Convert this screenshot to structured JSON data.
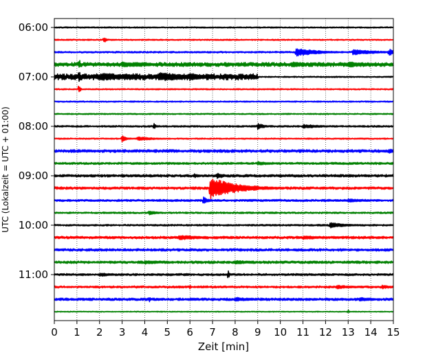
{
  "chart_data": {
    "type": "line",
    "title": "",
    "xlabel": "Zeit  [min]",
    "ylabel": "UTC (Lokalzeit = UTC + 01:00)",
    "xlim": [
      0,
      15
    ],
    "x_ticks": [
      0,
      1,
      2,
      3,
      4,
      5,
      6,
      7,
      8,
      9,
      10,
      11,
      12,
      13,
      14,
      15
    ],
    "y_tick_labels": [
      "06:00",
      "07:00",
      "08:00",
      "09:00",
      "10:00",
      "11:00"
    ],
    "grid": "vertical dotted",
    "legend": "none",
    "trace_colors": [
      "#000000",
      "#ff0000",
      "#0000ff",
      "#008000"
    ],
    "trace_interval_minutes": 15,
    "traces": [
      {
        "start": "06:00",
        "color": "#000000",
        "noise": 0.6,
        "events": []
      },
      {
        "start": "06:15",
        "color": "#ff0000",
        "noise": 0.6,
        "events": [
          {
            "t": 2.2,
            "amp": 5,
            "dur": 0.1
          }
        ]
      },
      {
        "start": "06:30",
        "color": "#0000ff",
        "noise": 0.8,
        "events": [
          {
            "t": 10.7,
            "amp": 6,
            "dur": 1.0
          },
          {
            "t": 13.2,
            "amp": 4,
            "dur": 1.2
          },
          {
            "t": 14.8,
            "amp": 5,
            "dur": 0.4
          }
        ]
      },
      {
        "start": "06:45",
        "color": "#008000",
        "noise": 2.0,
        "events": [
          {
            "t": 1.1,
            "amp": 10,
            "dur": 0.05
          },
          {
            "t": 3.0,
            "amp": 4,
            "dur": 1.5
          },
          {
            "t": 10.5,
            "amp": 4,
            "dur": 1.0
          },
          {
            "t": 13.0,
            "amp": 4,
            "dur": 1.5
          }
        ]
      },
      {
        "start": "07:00",
        "color": "#000000",
        "noise": 3.0,
        "events": [
          {
            "t": 1.1,
            "amp": 14,
            "dur": 0.05
          },
          {
            "t": 2.0,
            "amp": 6,
            "dur": 2.0
          },
          {
            "t": 4.6,
            "amp": 7,
            "dur": 1.5
          },
          {
            "t": 6.0,
            "amp": 6,
            "dur": 0.8
          }
        ],
        "noise_until": 9.0
      },
      {
        "start": "07:15",
        "color": "#ff0000",
        "noise": 0.6,
        "events": [
          {
            "t": 1.1,
            "amp": 8,
            "dur": 0.05
          }
        ]
      },
      {
        "start": "07:30",
        "color": "#0000ff",
        "noise": 0.6,
        "events": []
      },
      {
        "start": "07:45",
        "color": "#008000",
        "noise": 0.6,
        "events": []
      },
      {
        "start": "08:00",
        "color": "#000000",
        "noise": 0.8,
        "events": [
          {
            "t": 4.4,
            "amp": 5,
            "dur": 0.1
          },
          {
            "t": 9.0,
            "amp": 5,
            "dur": 0.3
          },
          {
            "t": 11.0,
            "amp": 3,
            "dur": 1.0
          }
        ]
      },
      {
        "start": "08:15",
        "color": "#ff0000",
        "noise": 0.6,
        "events": [
          {
            "t": 3.0,
            "amp": 5,
            "dur": 0.2
          },
          {
            "t": 3.7,
            "amp": 3,
            "dur": 0.8
          }
        ]
      },
      {
        "start": "08:30",
        "color": "#0000ff",
        "noise": 1.4,
        "events": [
          {
            "t": 14.8,
            "amp": 4,
            "dur": 0.3
          }
        ]
      },
      {
        "start": "08:45",
        "color": "#008000",
        "noise": 1.0,
        "events": [
          {
            "t": 9.0,
            "amp": 3,
            "dur": 0.6
          }
        ]
      },
      {
        "start": "09:00",
        "color": "#000000",
        "noise": 1.2,
        "events": [
          {
            "t": 6.2,
            "amp": 3,
            "dur": 0.3
          },
          {
            "t": 7.2,
            "amp": 5,
            "dur": 0.3
          }
        ]
      },
      {
        "start": "09:15",
        "color": "#ff0000",
        "noise": 1.2,
        "events": [
          {
            "t": 6.9,
            "amp": 16,
            "dur": 1.2
          }
        ]
      },
      {
        "start": "09:30",
        "color": "#0000ff",
        "noise": 1.0,
        "events": [
          {
            "t": 6.6,
            "amp": 6,
            "dur": 0.2
          },
          {
            "t": 13.0,
            "amp": 3,
            "dur": 0.8
          }
        ]
      },
      {
        "start": "09:45",
        "color": "#008000",
        "noise": 0.8,
        "events": [
          {
            "t": 4.2,
            "amp": 4,
            "dur": 0.3
          }
        ]
      },
      {
        "start": "10:00",
        "color": "#000000",
        "noise": 0.8,
        "events": [
          {
            "t": 12.2,
            "amp": 4,
            "dur": 0.8
          }
        ]
      },
      {
        "start": "10:15",
        "color": "#ff0000",
        "noise": 1.2,
        "events": [
          {
            "t": 5.5,
            "amp": 4,
            "dur": 1.0
          },
          {
            "t": 11.0,
            "amp": 3,
            "dur": 1.0
          }
        ]
      },
      {
        "start": "10:30",
        "color": "#0000ff",
        "noise": 1.2,
        "events": []
      },
      {
        "start": "10:45",
        "color": "#008000",
        "noise": 1.2,
        "events": [
          {
            "t": 4.0,
            "amp": 3,
            "dur": 1.0
          },
          {
            "t": 8.0,
            "amp": 3,
            "dur": 1.0
          }
        ]
      },
      {
        "start": "11:00",
        "color": "#000000",
        "noise": 1.0,
        "events": [
          {
            "t": 7.7,
            "amp": 8,
            "dur": 0.05
          },
          {
            "t": 2.0,
            "amp": 3,
            "dur": 0.6
          }
        ]
      },
      {
        "start": "11:15",
        "color": "#ff0000",
        "noise": 1.0,
        "events": [
          {
            "t": 6.0,
            "amp": 4,
            "dur": 0.05
          },
          {
            "t": 12.5,
            "amp": 3,
            "dur": 0.8
          },
          {
            "t": 14.5,
            "amp": 3,
            "dur": 0.5
          }
        ]
      },
      {
        "start": "11:30",
        "color": "#0000ff",
        "noise": 1.2,
        "events": [
          {
            "t": 4.2,
            "amp": 6,
            "dur": 0.05
          },
          {
            "t": 8.0,
            "amp": 3,
            "dur": 1.0
          },
          {
            "t": 13.5,
            "amp": 3,
            "dur": 0.8
          }
        ]
      },
      {
        "start": "11:45",
        "color": "#008000",
        "noise": 0.4,
        "events": [
          {
            "t": 13.0,
            "amp": 3,
            "dur": 0.05
          }
        ]
      }
    ]
  }
}
